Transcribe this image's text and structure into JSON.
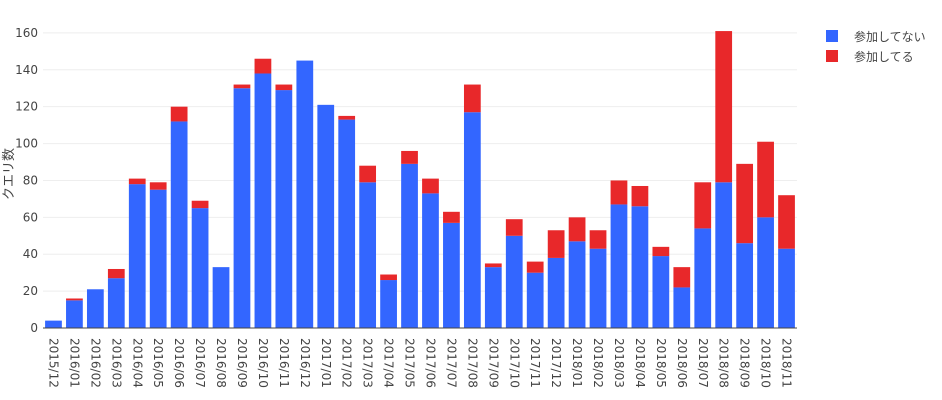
{
  "chart_data": {
    "type": "bar",
    "stacked": true,
    "title": "",
    "xlabel": "",
    "ylabel": "クエリ数",
    "ylim": [
      0,
      167
    ],
    "yticks": [
      0,
      20,
      40,
      60,
      80,
      100,
      120,
      140,
      160
    ],
    "grid": true,
    "legend_position": "top-right",
    "categories": [
      "2015/12",
      "2016/01",
      "2016/02",
      "2016/03",
      "2016/04",
      "2016/05",
      "2016/06",
      "2016/07",
      "2016/08",
      "2016/09",
      "2016/10",
      "2016/11",
      "2016/12",
      "2017/01",
      "2017/02",
      "2017/03",
      "2017/04",
      "2017/05",
      "2017/06",
      "2017/07",
      "2017/08",
      "2017/09",
      "2017/10",
      "2017/11",
      "2017/12",
      "2018/01",
      "2018/02",
      "2018/03",
      "2018/04",
      "2018/05",
      "2018/06",
      "2018/07",
      "2018/08",
      "2018/09",
      "2018/10",
      "2018/11"
    ],
    "series": [
      {
        "name": "参加してない",
        "color": "#3366ff",
        "values": [
          4,
          15,
          21,
          27,
          78,
          75,
          112,
          65,
          33,
          130,
          138,
          129,
          145,
          121,
          113,
          79,
          26,
          89,
          73,
          57,
          117,
          33,
          50,
          30,
          38,
          47,
          43,
          67,
          66,
          39,
          22,
          54,
          79,
          46,
          60,
          43
        ]
      },
      {
        "name": "参加してる",
        "color": "#e8282a",
        "values": [
          0,
          1,
          0,
          5,
          3,
          4,
          8,
          4,
          0,
          2,
          8,
          3,
          0,
          0,
          2,
          9,
          3,
          7,
          8,
          6,
          15,
          2,
          9,
          6,
          15,
          13,
          10,
          13,
          11,
          5,
          11,
          25,
          82,
          43,
          41,
          29
        ]
      }
    ]
  }
}
